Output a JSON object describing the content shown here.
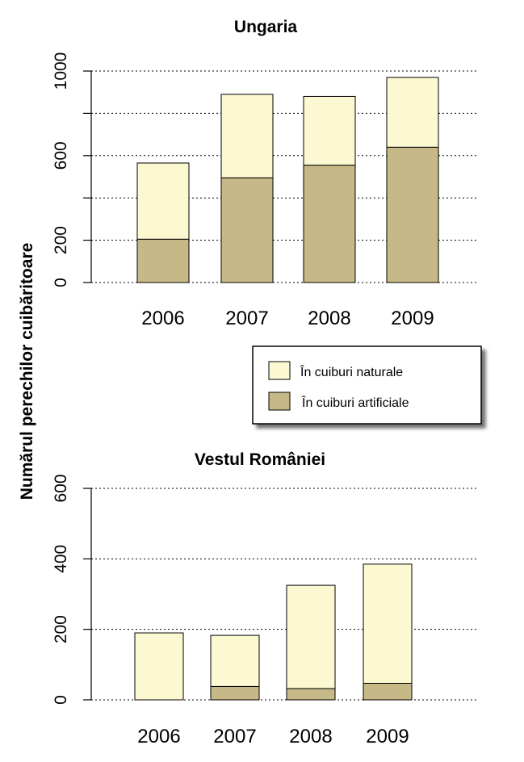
{
  "y_axis_label": "Numărul perechilor cuibăritoare",
  "colors": {
    "natural": "#fcf9d2",
    "artificial": "#c6b987",
    "grid": "#000000"
  },
  "legend": {
    "position": "center-right",
    "items": [
      {
        "label": "În cuiburi naturale",
        "color": "#fcf9d2"
      },
      {
        "label": "În cuiburi artificiale",
        "color": "#c6b987"
      }
    ]
  },
  "chart_data": [
    {
      "type": "bar",
      "stacked": true,
      "title": "Ungaria",
      "categories": [
        "2006",
        "2007",
        "2008",
        "2009"
      ],
      "series": [
        {
          "name": "În cuiburi artificiale",
          "values": [
            205,
            495,
            555,
            640
          ]
        },
        {
          "name": "În cuiburi naturale",
          "values": [
            360,
            395,
            325,
            330
          ]
        }
      ],
      "ylim": [
        0,
        1000
      ],
      "y_ticks": [
        0,
        200,
        400,
        600,
        800,
        1000
      ],
      "y_tick_labels": [
        "0",
        "200",
        "",
        "600",
        "",
        "1000"
      ],
      "grid": true
    },
    {
      "type": "bar",
      "stacked": true,
      "title": "Vestul României",
      "categories": [
        "2006",
        "2007",
        "2008",
        "2009"
      ],
      "series": [
        {
          "name": "În cuiburi artificiale",
          "values": [
            0,
            38,
            32,
            47
          ]
        },
        {
          "name": "În cuiburi naturale",
          "values": [
            190,
            145,
            293,
            338
          ]
        }
      ],
      "ylim": [
        0,
        600
      ],
      "y_ticks": [
        0,
        200,
        400,
        600
      ],
      "y_tick_labels": [
        "0",
        "200",
        "400",
        "600"
      ],
      "grid": true
    }
  ]
}
